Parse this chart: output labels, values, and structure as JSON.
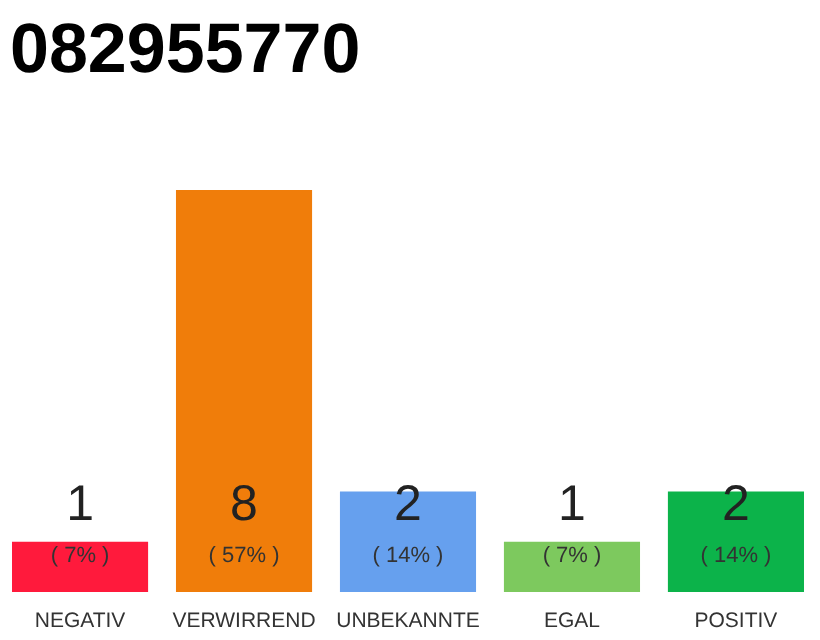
{
  "chart_data": {
    "type": "bar",
    "title": "082955770",
    "categories": [
      "NEGATIV",
      "VERWIRREND",
      "UNBEKANNTE",
      "EGAL",
      "POSITIV"
    ],
    "values": [
      1,
      8,
      2,
      1,
      2
    ],
    "colors": [
      "#ff1a3c",
      "#f07d0a",
      "#66a0ee",
      "#7dc95e",
      "#0cb34a"
    ],
    "tick_labels": "x",
    "grid": false,
    "legend": false,
    "data_labels": true,
    "annotations": [
      "( 7% )",
      "( 57% )",
      "( 14% )",
      "( 7% )",
      "( 14% )"
    ]
  }
}
